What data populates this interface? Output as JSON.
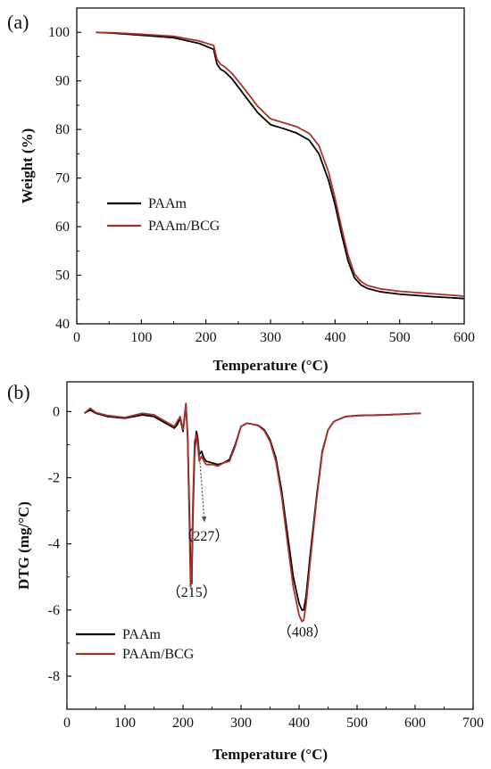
{
  "chart_data": [
    {
      "type": "line",
      "panel_label": "(a)",
      "xlabel": "Temperature (°C)",
      "ylabel": "Weight (%)",
      "xlim": [
        0,
        600
      ],
      "ylim": [
        40,
        105
      ],
      "xticks": [
        0,
        100,
        200,
        300,
        400,
        500,
        600
      ],
      "yticks": [
        40,
        50,
        60,
        70,
        80,
        90,
        100
      ],
      "legend": "middle-left",
      "grid": false,
      "series": [
        {
          "name": "PAAm",
          "color": "#000000",
          "x": [
            30,
            60,
            100,
            150,
            190,
            212,
            217,
            222,
            230,
            240,
            260,
            280,
            300,
            320,
            340,
            360,
            375,
            390,
            400,
            410,
            420,
            430,
            440,
            450,
            470,
            500,
            550,
            600
          ],
          "y": [
            100.0,
            99.8,
            99.4,
            98.9,
            97.7,
            96.5,
            93.5,
            92.5,
            91.8,
            90.5,
            87.0,
            83.5,
            81.0,
            80.2,
            79.3,
            77.8,
            75.0,
            69.5,
            64.5,
            58.5,
            53.0,
            49.5,
            48.0,
            47.3,
            46.6,
            46.1,
            45.6,
            45.2
          ]
        },
        {
          "name": "PAAm/BCG",
          "color": "#a8322a",
          "x": [
            30,
            60,
            100,
            150,
            190,
            212,
            217,
            222,
            230,
            240,
            260,
            280,
            300,
            320,
            340,
            360,
            375,
            390,
            400,
            410,
            420,
            430,
            440,
            450,
            470,
            500,
            550,
            600
          ],
          "y": [
            100.0,
            99.9,
            99.6,
            99.2,
            98.2,
            97.3,
            94.5,
            93.5,
            92.8,
            91.6,
            88.3,
            84.8,
            82.2,
            81.4,
            80.6,
            79.2,
            76.7,
            71.2,
            65.8,
            59.8,
            54.2,
            50.3,
            48.7,
            47.9,
            47.2,
            46.7,
            46.2,
            45.7
          ]
        }
      ]
    },
    {
      "type": "line",
      "panel_label": "(b)",
      "xlabel": "Temperature (°C)",
      "ylabel": "DTG (mg/°C)",
      "xlim": [
        0,
        700
      ],
      "ylim": [
        -9,
        0.9
      ],
      "xticks": [
        0,
        100,
        200,
        300,
        400,
        500,
        600,
        700
      ],
      "yticks": [
        -8,
        -6,
        -4,
        -2,
        0
      ],
      "legend": "bottom-left",
      "grid": false,
      "annotations": [
        {
          "text": "（215）",
          "x": 215,
          "y": -5.6
        },
        {
          "text": "（227）",
          "x": 236,
          "y": -3.9
        },
        {
          "text": "（408）",
          "x": 406,
          "y": -6.8
        }
      ],
      "series": [
        {
          "name": "PAAm",
          "color": "#000000",
          "x": [
            30,
            40,
            50,
            70,
            100,
            130,
            150,
            170,
            185,
            190,
            195,
            200,
            205,
            208,
            211,
            213,
            215,
            217,
            220,
            223,
            225,
            228,
            232,
            236,
            240,
            250,
            260,
            270,
            280,
            290,
            300,
            310,
            320,
            330,
            340,
            350,
            360,
            370,
            380,
            390,
            400,
            405,
            408,
            412,
            420,
            430,
            440,
            450,
            460,
            480,
            500,
            550,
            610
          ],
          "y": [
            -0.05,
            0.05,
            -0.05,
            -0.15,
            -0.2,
            -0.1,
            -0.15,
            -0.35,
            -0.5,
            -0.4,
            -0.2,
            -0.6,
            0.2,
            -0.7,
            -3.0,
            -4.6,
            -5.2,
            -3.2,
            -1.2,
            -0.6,
            -0.75,
            -1.3,
            -1.2,
            -1.4,
            -1.5,
            -1.55,
            -1.6,
            -1.55,
            -1.45,
            -1.0,
            -0.45,
            -0.35,
            -0.38,
            -0.42,
            -0.55,
            -0.85,
            -1.4,
            -2.4,
            -3.7,
            -5.0,
            -5.8,
            -6.0,
            -6.0,
            -5.6,
            -4.2,
            -2.6,
            -1.2,
            -0.55,
            -0.3,
            -0.15,
            -0.12,
            -0.1,
            -0.05
          ]
        },
        {
          "name": "PAAm/BCG",
          "color": "#a8322a",
          "x": [
            30,
            40,
            50,
            70,
            100,
            130,
            150,
            170,
            185,
            190,
            195,
            200,
            205,
            208,
            211,
            213,
            215,
            217,
            220,
            223,
            225,
            228,
            232,
            236,
            240,
            250,
            260,
            270,
            280,
            290,
            300,
            310,
            320,
            330,
            340,
            350,
            360,
            370,
            380,
            390,
            400,
            405,
            408,
            412,
            420,
            430,
            440,
            450,
            460,
            480,
            500,
            550,
            610
          ],
          "y": [
            -0.05,
            0.1,
            -0.03,
            -0.12,
            -0.18,
            -0.05,
            -0.1,
            -0.3,
            -0.45,
            -0.3,
            -0.15,
            -0.55,
            0.25,
            -0.8,
            -3.4,
            -5.3,
            -4.9,
            -2.8,
            -0.9,
            -0.7,
            -0.95,
            -1.5,
            -1.35,
            -1.5,
            -1.6,
            -1.6,
            -1.65,
            -1.55,
            -1.5,
            -1.05,
            -0.45,
            -0.35,
            -0.38,
            -0.43,
            -0.58,
            -0.9,
            -1.5,
            -2.55,
            -3.95,
            -5.3,
            -6.15,
            -6.35,
            -6.3,
            -5.85,
            -4.4,
            -2.7,
            -1.25,
            -0.55,
            -0.3,
            -0.15,
            -0.12,
            -0.1,
            -0.05
          ]
        }
      ]
    }
  ]
}
